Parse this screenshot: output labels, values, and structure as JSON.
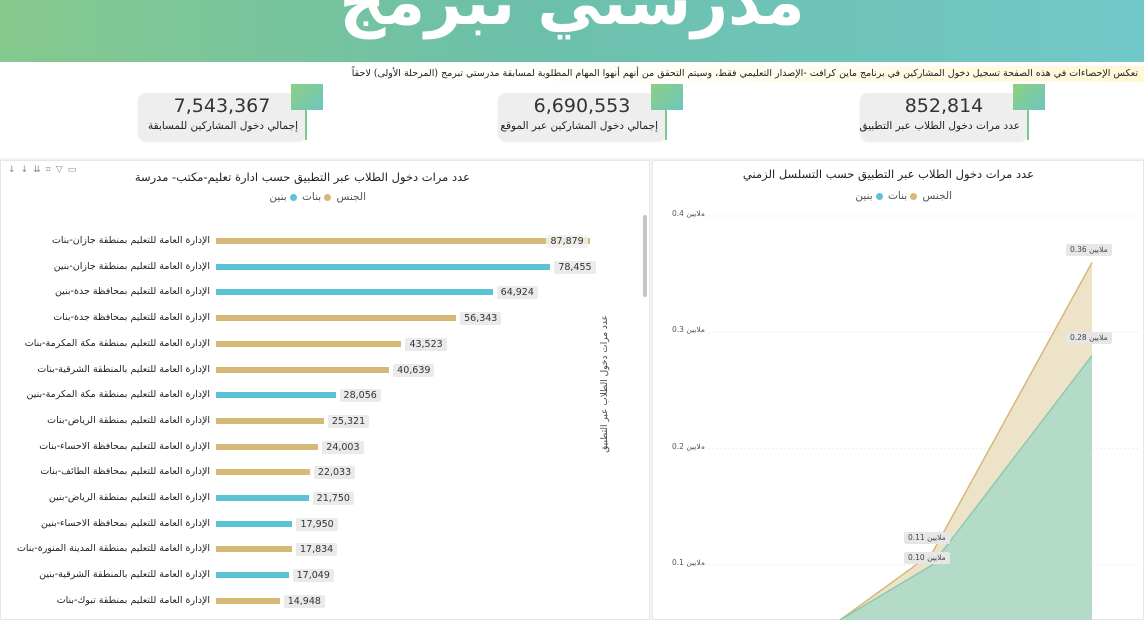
{
  "header": {
    "title": "مدرستي تبرمج"
  },
  "notice": "تعكس الإحصاءات في هذه الصفحة تسجيل دخول المشاركين في برنامج ماين كرافت -الإصدار التعليمي فقط، وسيتم التحقق من أنهم أنهوا المهام المطلوبة لمسابقة مدرستي تبرمج (المرحلة الأولى) لاحقاً",
  "kpis": [
    {
      "value": "7,543,367",
      "label": "إجمالي دخول المشاركين للمسابقة"
    },
    {
      "value": "6,690,553",
      "label": "إجمالي دخول المشاركين عبر الموقع"
    },
    {
      "value": "852,814",
      "label": "عدد مرات دخول الطلاب عبر التطبيق"
    }
  ],
  "left_panel": {
    "title": "عدد مرات دخول الطلاب عبر التطبيق حسب ادارة تعليم-مكتب- مدرسة",
    "legend_title": "الجنس",
    "legend": [
      {
        "label": "بنات",
        "color": "#d6b877"
      },
      {
        "label": "بنين",
        "color": "#5bc3d3"
      }
    ],
    "toolbar_icons": [
      "arrow-down-icon",
      "arrow-down-icon",
      "double-arrow-icon",
      "expand-icon",
      "filter-icon",
      "focus-icon"
    ]
  },
  "right_panel": {
    "title": "عدد مرات دخول الطلاب عبر التطبيق حسب التسلسل الزمني",
    "legend_title": "الجنس",
    "legend": [
      {
        "label": "بنات",
        "color": "#d6b877"
      },
      {
        "label": "بنين",
        "color": "#5bc3d3"
      }
    ],
    "y_axis_title": "عدد مرات دخول الطلاب عبر التطبيق",
    "y_ticks": [
      "ملايين 0.4",
      "ملايين 0.3",
      "ملايين 0.2",
      "ملايين 0.1"
    ],
    "annotations": [
      "ملايين 0.36",
      "ملايين 0.28",
      "ملايين 0.11",
      "ملايين 0.10"
    ]
  },
  "chart_data": [
    {
      "type": "bar",
      "title": "عدد مرات دخول الطلاب عبر التطبيق حسب ادارة تعليم-مكتب- مدرسة",
      "categories": [
        "الإدارة العامة للتعليم بمنطقة جازان-بنات",
        "الإدارة العامة للتعليم بمنطقة جازان-بنين",
        "الإدارة العامة للتعليم بمحافظة جدة-بنين",
        "الإدارة العامة للتعليم بمحافظة جدة-بنات",
        "الإدارة العامة للتعليم بمنطقة مكة المكرمة-بنات",
        "الإدارة العامة للتعليم بالمنطقة الشرقية-بنات",
        "الإدارة العامة للتعليم بمنطقة مكة المكرمة-بنين",
        "الإدارة العامة للتعليم بمنطقة الرياض-بنات",
        "الإدارة العامة للتعليم بمحافظة الاحساء-بنات",
        "الإدارة العامة للتعليم بمحافظة الطائف-بنات",
        "الإدارة العامة للتعليم بمنطقة الرياض-بنين",
        "الإدارة العامة للتعليم بمحافظة الاحساء-بنين",
        "الإدارة العامة للتعليم بمنطقة المدينة المنورة-بنات",
        "الإدارة العامة للتعليم بالمنطقة الشرقية-بنين",
        "الإدارة العامة للتعليم بمنطقة تبوك-بنات"
      ],
      "values": [
        87879,
        78455,
        64924,
        56343,
        43523,
        40639,
        28056,
        25321,
        24003,
        22033,
        21750,
        17950,
        17834,
        17049,
        14948
      ],
      "value_labels": [
        "87,879",
        "78,455",
        "64,924",
        "56,343",
        "43,523",
        "40,639",
        "28,056",
        "25,321",
        "24,003",
        "22,033",
        "21,750",
        "17,950",
        "17,834",
        "17,049",
        "14,948"
      ],
      "genders": [
        "بنات",
        "بنين",
        "بنين",
        "بنات",
        "بنات",
        "بنات",
        "بنين",
        "بنات",
        "بنات",
        "بنات",
        "بنين",
        "بنين",
        "بنات",
        "بنين",
        "بنات"
      ],
      "xlim": [
        0,
        88000
      ],
      "legend_title": "الجنس",
      "legend": [
        "بنات",
        "بنين"
      ]
    },
    {
      "type": "area",
      "title": "عدد مرات دخول الطلاب عبر التطبيق حسب التسلسل الزمني",
      "ylabel": "عدد مرات دخول الطلاب عبر التطبيق",
      "ylim": [
        0,
        0.4
      ],
      "y_unit": "ملايين",
      "series": [
        {
          "name": "بنات",
          "color": "#d6b877",
          "points": [
            0.0,
            0.11,
            0.36
          ]
        },
        {
          "name": "بنين",
          "color": "#5bc3d3",
          "points": [
            0.0,
            0.1,
            0.28
          ]
        }
      ],
      "legend_title": "الجنس"
    }
  ]
}
